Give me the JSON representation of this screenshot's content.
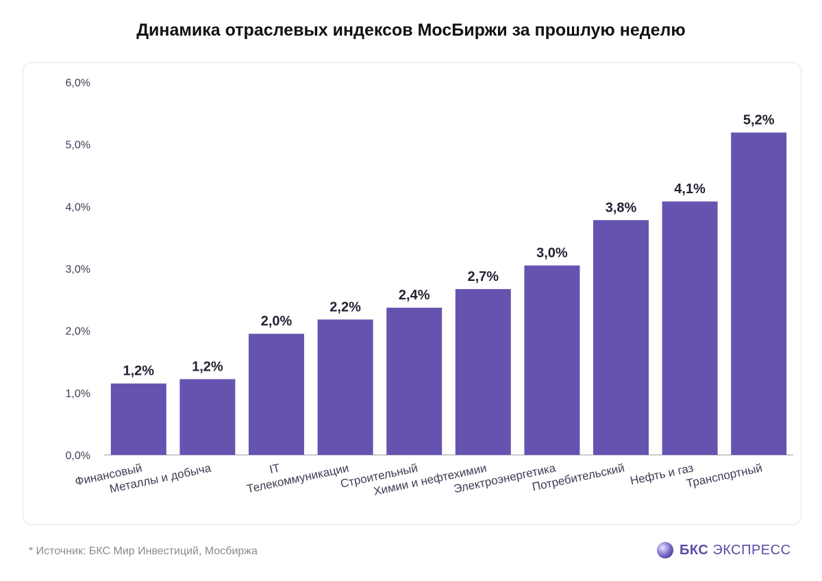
{
  "chart_data": {
    "type": "bar",
    "title": "Динамика отраслевых индексов МосБиржи за прошлую неделю",
    "categories": [
      "Финансовый",
      "Металлы и добыча",
      "IT",
      "Телекоммуникации",
      "Строительный",
      "Химии и нефтехимии",
      "Электроэнергетика",
      "Потребительский",
      "Нефть и газ",
      "Транспортный"
    ],
    "values": [
      1.15,
      1.22,
      1.95,
      2.18,
      2.37,
      2.67,
      3.05,
      3.78,
      4.08,
      5.19
    ],
    "data_labels": [
      "1,2%",
      "1,2%",
      "2,0%",
      "2,2%",
      "2,4%",
      "2,7%",
      "3,0%",
      "3,8%",
      "4,1%",
      "5,2%"
    ],
    "y_ticks": [
      "0,0%",
      "1,0%",
      "2,0%",
      "3,0%",
      "4,0%",
      "5,0%",
      "6,0%"
    ],
    "ylim": [
      0,
      6
    ],
    "xlabel": "",
    "ylabel": "",
    "grid": false,
    "bar_color": "#6653b0"
  },
  "footnote": "*  Источник: БКС Мир Инвестиций, Мосбиржа",
  "logo": {
    "bold": "БКС",
    "text": " ЭКСПРЕСС",
    "icon": "bks-orb-icon",
    "color": "#5a4aa6"
  }
}
